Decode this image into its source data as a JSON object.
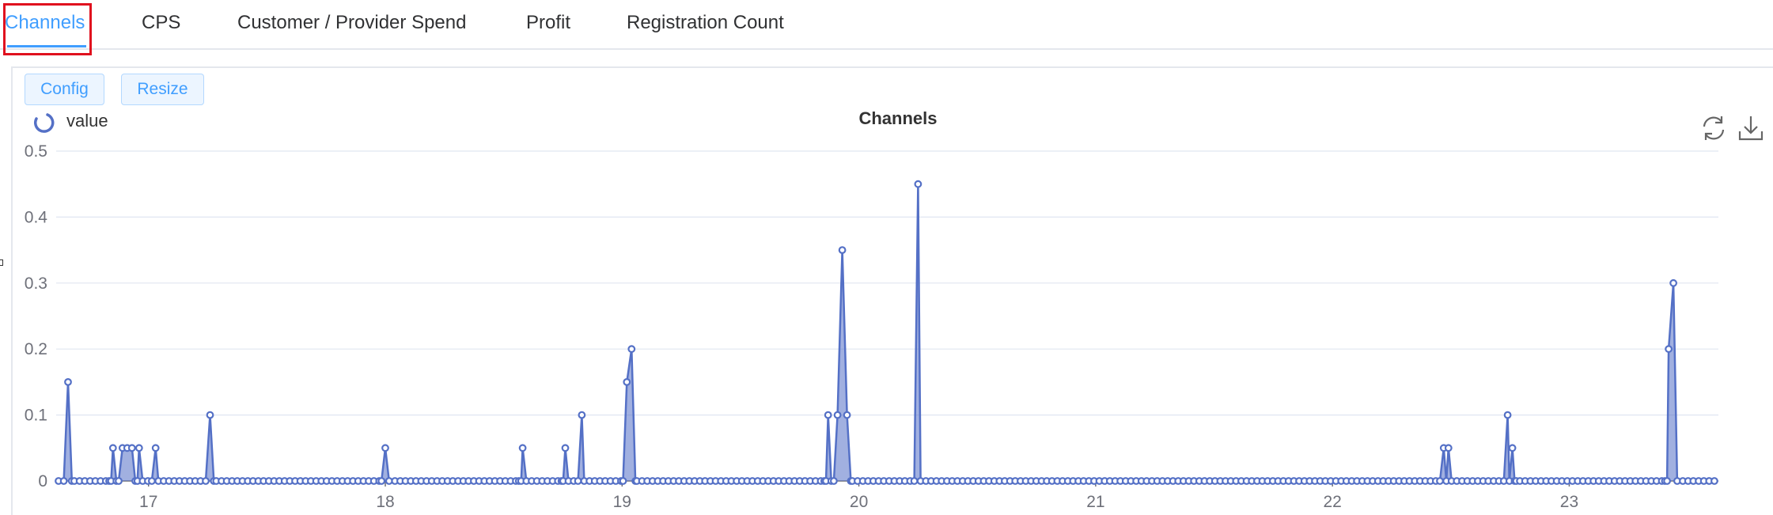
{
  "tabs": [
    {
      "label": "Channels",
      "active": true
    },
    {
      "label": "CPS",
      "active": false
    },
    {
      "label": "Customer / Provider Spend",
      "active": false
    },
    {
      "label": "Profit",
      "active": false
    },
    {
      "label": "Registration Count",
      "active": false
    }
  ],
  "toolbar": {
    "config_label": "Config",
    "resize_label": "Resize"
  },
  "icons": {
    "legend": "loading-ring-icon",
    "refresh": "refresh-icon",
    "download": "download-icon"
  },
  "colors": {
    "series": "#5470c6",
    "area": "#5470c6",
    "accent": "#409eff",
    "highlight_frame": "#e0101e"
  },
  "chart_data": {
    "type": "area",
    "title": "Channels",
    "legend": [
      "value"
    ],
    "legend_position": "top-left",
    "grid": true,
    "x_ticks": [
      "17",
      "18",
      "19",
      "20",
      "21",
      "22",
      "23"
    ],
    "xlim": [
      16.61,
      23.63
    ],
    "ylim": [
      0,
      0.5
    ],
    "y_ticks": [
      "0",
      "0.1",
      "0.2",
      "0.3",
      "0.4",
      "0.5"
    ],
    "series": [
      {
        "name": "value",
        "points": [
          [
            16.66,
            0.15
          ],
          [
            16.85,
            0.05
          ],
          [
            16.89,
            0.05
          ],
          [
            16.91,
            0.05
          ],
          [
            16.93,
            0.05
          ],
          [
            16.96,
            0.05
          ],
          [
            17.03,
            0.05
          ],
          [
            17.26,
            0.1
          ],
          [
            18.0,
            0.05
          ],
          [
            18.58,
            0.05
          ],
          [
            18.76,
            0.05
          ],
          [
            18.83,
            0.1
          ],
          [
            19.02,
            0.15
          ],
          [
            19.04,
            0.2
          ],
          [
            19.87,
            0.1
          ],
          [
            19.91,
            0.1
          ],
          [
            19.93,
            0.35
          ],
          [
            19.95,
            0.1
          ],
          [
            20.25,
            0.45
          ],
          [
            22.47,
            0.05
          ],
          [
            22.49,
            0.05
          ],
          [
            22.74,
            0.1
          ],
          [
            22.76,
            0.05
          ],
          [
            23.42,
            0.2
          ],
          [
            23.44,
            0.3
          ]
        ]
      }
    ]
  }
}
